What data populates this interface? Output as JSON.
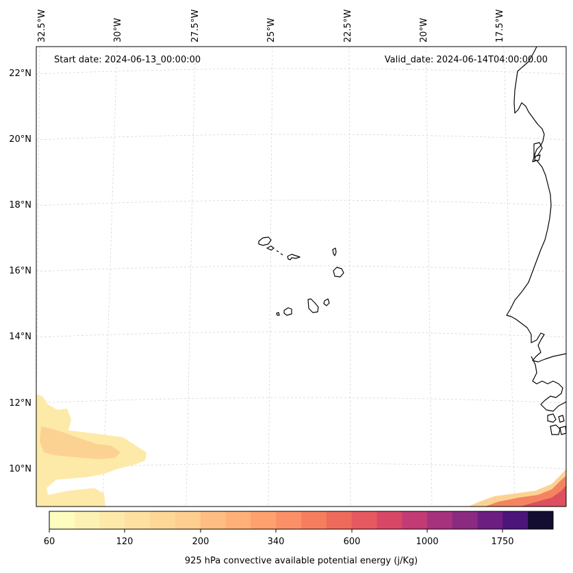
{
  "header": {
    "start_date": "Start date: 2024-06-13_00:00:00",
    "valid_date": "Valid_date: 2024-06-14T04:00:00.00"
  },
  "map": {
    "projection": "conic",
    "lon_labels": [
      "32.5°W",
      "30°W",
      "27.5°W",
      "25°W",
      "22.5°W",
      "20°W",
      "17.5°W"
    ],
    "lat_labels": [
      "22°N",
      "20°N",
      "18°N",
      "16°N",
      "14°N",
      "12°N",
      "10°N"
    ],
    "field_colors": {
      "low": "#fdeaa8",
      "mid": "#fcd293",
      "high": "#f4845f",
      "peak": "#de4f5f"
    }
  },
  "colorbar": {
    "label": "925 hPa convective available potential energy (j/Kg)",
    "tick_labels": [
      "60",
      "120",
      "200",
      "340",
      "600",
      "1000",
      "1750"
    ],
    "colors": [
      "#fcfdbf",
      "#fcf2b4",
      "#fde9aa",
      "#fee0a0",
      "#fed797",
      "#fecd90",
      "#febd82",
      "#feb078",
      "#fea16e",
      "#fb9068",
      "#f67e5f",
      "#ee6a5b",
      "#e65960",
      "#d84866",
      "#c23b75",
      "#a6327e",
      "#8a2a81",
      "#6c1f80",
      "#4b157a",
      "#120d31"
    ]
  }
}
